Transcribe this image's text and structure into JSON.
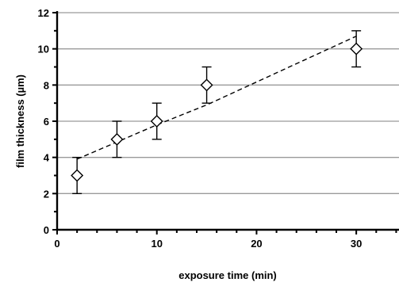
{
  "chart_data": {
    "type": "scatter",
    "xlabel": "exposure time (min)",
    "ylabel": "film thickness (µm)",
    "xlim": [
      0,
      35
    ],
    "ylim": [
      0,
      12
    ],
    "x_ticks": [
      0,
      10,
      20,
      30
    ],
    "y_ticks": [
      0,
      2,
      4,
      6,
      8,
      10,
      12
    ],
    "grid": "horizontal",
    "points": [
      {
        "x": 2,
        "y": 3,
        "err": 1
      },
      {
        "x": 6,
        "y": 5,
        "err": 1
      },
      {
        "x": 10,
        "y": 6,
        "err": 1
      },
      {
        "x": 15,
        "y": 8,
        "err": 1
      },
      {
        "x": 30,
        "y": 10,
        "err": 1
      }
    ],
    "fit_line": {
      "style": "dashed",
      "points": [
        [
          2,
          3.9
        ],
        [
          10,
          5.8
        ],
        [
          15,
          6.9
        ],
        [
          30,
          10.7
        ]
      ]
    },
    "marker": "diamond-open"
  }
}
